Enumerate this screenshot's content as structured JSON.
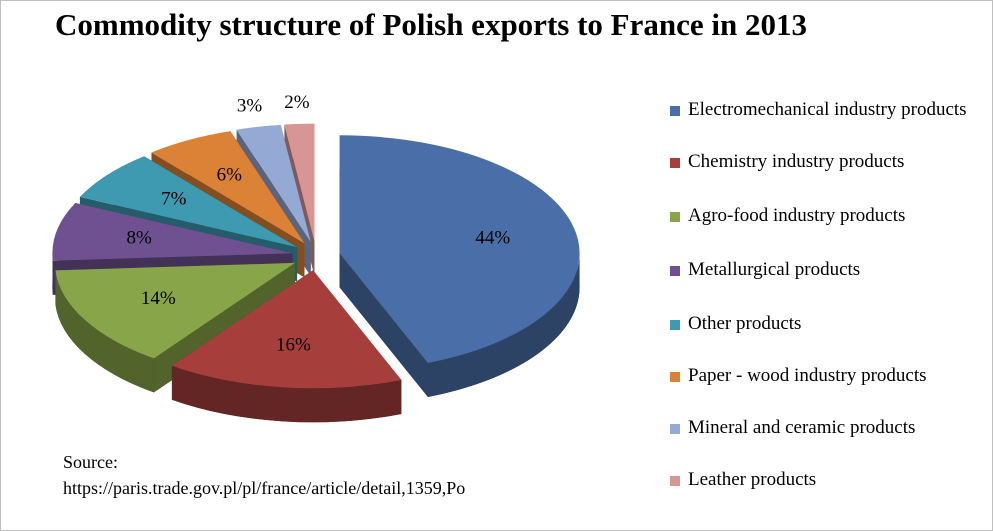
{
  "chart_data": {
    "type": "pie3d",
    "title": "Commodity structure of Polish exports to France in 2013",
    "categories": [
      "Electromechanical industry products",
      "Chemistry industry products",
      "Agro-food industry products",
      "Metallurgical products",
      "Other products",
      "Paper - wood industry products",
      "Mineral and ceramic products",
      "Leather products"
    ],
    "values": [
      44,
      16,
      14,
      8,
      7,
      6,
      3,
      2
    ],
    "value_labels": [
      "44%",
      "16%",
      "14%",
      "8%",
      "7%",
      "6%",
      "3%",
      "2%"
    ],
    "colors": [
      "#4a6fa8",
      "#a63f3c",
      "#89a54a",
      "#6f5192",
      "#3e9ab1",
      "#dc8236",
      "#94a9d4",
      "#d79593"
    ],
    "legend": "right",
    "annotations": [
      "Source:",
      "https://paris.trade.gov.pl/pl/france/article/detail,1359,Po"
    ]
  }
}
